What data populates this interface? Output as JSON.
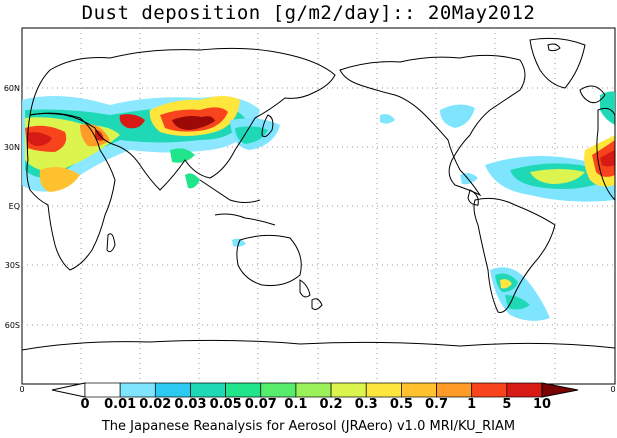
{
  "title": "Dust deposition [g/m2/day]:: 20May2012",
  "footer": "The Japanese Reanalysis for Aerosol (JRAero) v1.0 MRI/KU_RIAM",
  "lat_labels": [
    "60N",
    "30N",
    "EQ",
    "30S",
    "60S"
  ],
  "colorbar": {
    "end_label_left": "0",
    "end_label_right": "0",
    "tick_labels": [
      "0",
      "0.01",
      "0.02",
      "0.03",
      "0.05",
      "0.07",
      "0.1",
      "0.2",
      "0.3",
      "0.5",
      "0.7",
      "1",
      "5",
      "10"
    ],
    "colors": [
      "#ffffff",
      "#ffffff",
      "#7fe5ff",
      "#2ccaf0",
      "#1fd9b6",
      "#20e58b",
      "#56ec6c",
      "#9bf15a",
      "#dcf44e",
      "#ffe63c",
      "#ffc12d",
      "#ff9b26",
      "#f7441d",
      "#d81a14",
      "#9c0a08",
      "#7a0404"
    ]
  },
  "map_icons": {
    "land": "coastline-outline",
    "dust": "dust-deposition-shading"
  }
}
